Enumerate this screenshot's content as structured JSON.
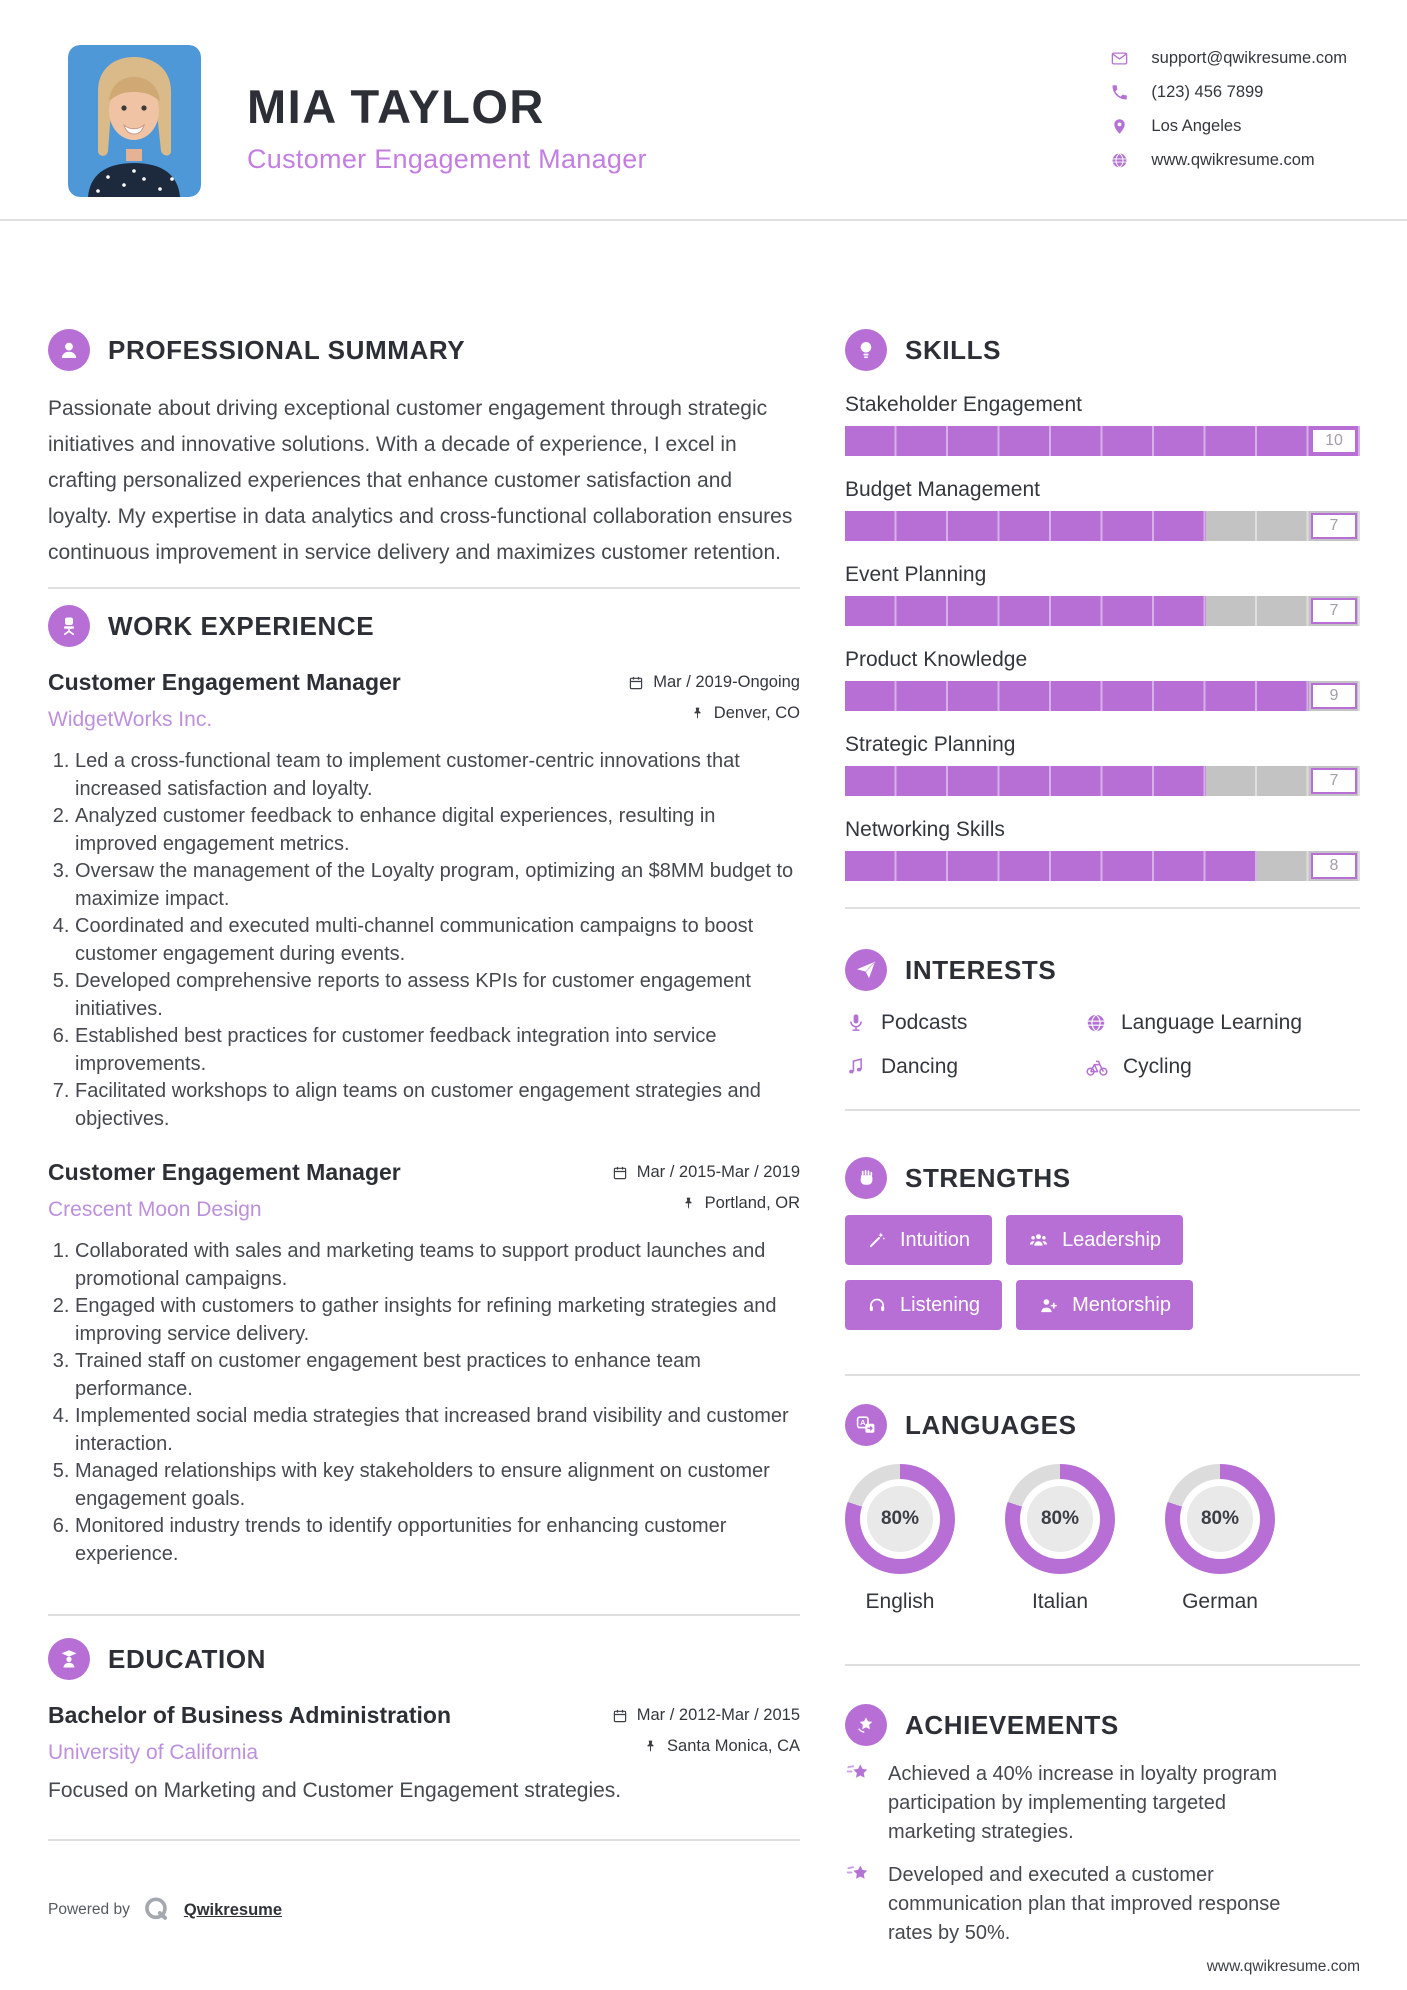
{
  "colors": {
    "accent": "#b76fd6",
    "accent_title": "#c47ee2",
    "accent_company": "#bd90dc",
    "bar_track": "#c3c3c3",
    "donut_track": "#dcdcdc"
  },
  "header": {
    "name": "MIA TAYLOR",
    "title": "Customer Engagement Manager"
  },
  "contact": {
    "email": "support@qwikresume.com",
    "phone": "(123) 456 7899",
    "location": "Los Angeles",
    "website": "www.qwikresume.com"
  },
  "summary": {
    "heading": "PROFESSIONAL SUMMARY",
    "text": "Passionate about driving exceptional customer engagement through strategic initiatives and innovative solutions. With a decade of experience, I excel in crafting personalized experiences that enhance customer satisfaction and loyalty. My expertise in data analytics and cross-functional collaboration ensures continuous improvement in service delivery and maximizes customer retention."
  },
  "work": {
    "heading": "WORK EXPERIENCE",
    "jobs": [
      {
        "title": "Customer Engagement Manager",
        "company": "WidgetWorks Inc.",
        "dates": "Mar / 2019-Ongoing",
        "location": "Denver, CO",
        "bullets": [
          "Led a cross-functional team to implement customer-centric innovations that increased satisfaction and loyalty.",
          "Analyzed customer feedback to enhance digital experiences, resulting in improved engagement metrics.",
          "Oversaw the management of the Loyalty program, optimizing an $8MM budget to maximize impact.",
          "Coordinated and executed multi-channel communication campaigns to boost customer engagement during events.",
          "Developed comprehensive reports to assess KPIs for customer engagement initiatives.",
          "Established best practices for customer feedback integration into service improvements.",
          "Facilitated workshops to align teams on customer engagement strategies and objectives."
        ]
      },
      {
        "title": "Customer Engagement Manager",
        "company": "Crescent Moon Design",
        "dates": "Mar / 2015-Mar / 2019",
        "location": "Portland, OR",
        "bullets": [
          "Collaborated with sales and marketing teams to support product launches and promotional campaigns.",
          "Engaged with customers to gather insights for refining marketing strategies and improving service delivery.",
          "Trained staff on customer engagement best practices to enhance team performance.",
          "Implemented social media strategies that increased brand visibility and customer interaction.",
          "Managed relationships with key stakeholders to ensure alignment on customer engagement goals.",
          "Monitored industry trends to identify opportunities for enhancing customer experience."
        ]
      }
    ]
  },
  "education": {
    "heading": "EDUCATION",
    "degree": "Bachelor of Business Administration",
    "school": "University of California",
    "dates": "Mar / 2012-Mar / 2015",
    "location": "Santa Monica, CA",
    "description": "Focused on Marketing and Customer Engagement strategies."
  },
  "skills": {
    "heading": "SKILLS",
    "max": 10,
    "items": [
      {
        "name": "Stakeholder Engagement",
        "value": 10
      },
      {
        "name": "Budget Management",
        "value": 7
      },
      {
        "name": "Event Planning",
        "value": 7
      },
      {
        "name": "Product Knowledge",
        "value": 9
      },
      {
        "name": "Strategic Planning",
        "value": 7
      },
      {
        "name": "Networking Skills",
        "value": 8
      }
    ]
  },
  "interests": {
    "heading": "INTERESTS",
    "items": [
      {
        "label": "Podcasts",
        "icon": "microphone-icon"
      },
      {
        "label": "Language Learning",
        "icon": "globe-icon"
      },
      {
        "label": "Dancing",
        "icon": "music-note-icon"
      },
      {
        "label": "Cycling",
        "icon": "bicycle-icon"
      }
    ]
  },
  "strengths": {
    "heading": "STRENGTHS",
    "items": [
      {
        "label": "Intuition",
        "icon": "magic-wand-icon"
      },
      {
        "label": "Leadership",
        "icon": "people-group-icon"
      },
      {
        "label": "Listening",
        "icon": "headphones-icon"
      },
      {
        "label": "Mentorship",
        "icon": "person-plus-icon"
      }
    ]
  },
  "languages": {
    "heading": "LANGUAGES",
    "items": [
      {
        "name": "English",
        "percent": 80,
        "percent_label": "80%"
      },
      {
        "name": "Italian",
        "percent": 80,
        "percent_label": "80%"
      },
      {
        "name": "German",
        "percent": 80,
        "percent_label": "80%"
      }
    ]
  },
  "achievements": {
    "heading": "ACHIEVEMENTS",
    "items": [
      "Achieved a 40% increase in loyalty program participation by implementing targeted marketing strategies.",
      "Developed and executed a customer communication plan that improved response rates by 50%."
    ]
  },
  "footer": {
    "powered_by": "Powered by",
    "brand": "Qwikresume",
    "website": "www.qwikresume.com"
  }
}
